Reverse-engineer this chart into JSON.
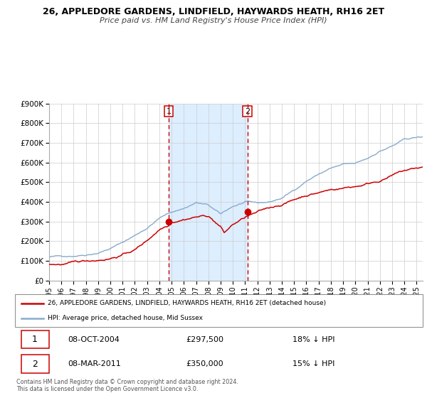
{
  "title": "26, APPLEDORE GARDENS, LINDFIELD, HAYWARDS HEATH, RH16 2ET",
  "subtitle": "Price paid vs. HM Land Registry's House Price Index (HPI)",
  "red_label": "26, APPLEDORE GARDENS, LINDFIELD, HAYWARDS HEATH, RH16 2ET (detached house)",
  "blue_label": "HPI: Average price, detached house, Mid Sussex",
  "sale1_date": "08-OCT-2004",
  "sale1_price": 297500,
  "sale1_pct": "18% ↓ HPI",
  "sale2_date": "08-MAR-2011",
  "sale2_price": 350000,
  "sale2_pct": "15% ↓ HPI",
  "footnote1": "Contains HM Land Registry data © Crown copyright and database right 2024.",
  "footnote2": "This data is licensed under the Open Government Licence v3.0.",
  "red_color": "#cc0000",
  "blue_color": "#88aacc",
  "shade_color": "#ddeeff",
  "grid_color": "#cccccc",
  "ylim": [
    0,
    900000
  ],
  "yticks": [
    0,
    100000,
    200000,
    300000,
    400000,
    500000,
    600000,
    700000,
    800000,
    900000
  ],
  "xlim_start": 1995.0,
  "xlim_end": 2025.5,
  "sale1_x": 2004.77,
  "sale2_x": 2011.18
}
